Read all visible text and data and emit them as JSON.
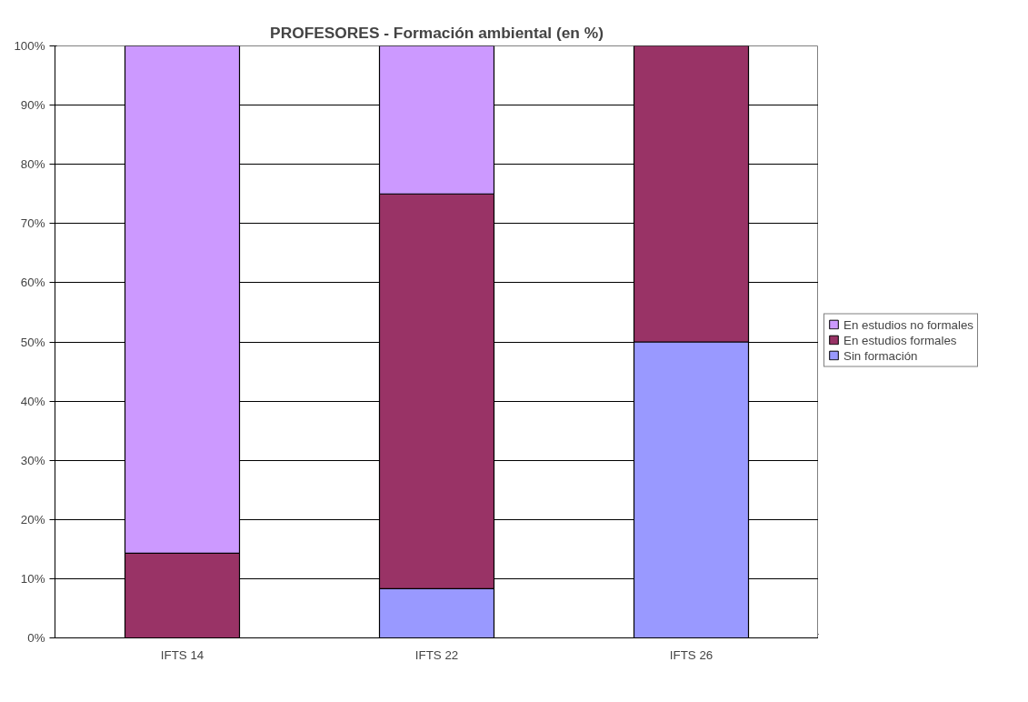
{
  "chart_data": {
    "type": "bar",
    "stacked": true,
    "title": "PROFESORES - Formación ambiental (en %)",
    "categories": [
      "IFTS 14",
      "IFTS 22",
      "IFTS 26"
    ],
    "series": [
      {
        "name": "Sin formación",
        "color": "#9999ff",
        "values": [
          0,
          8.3,
          50
        ]
      },
      {
        "name": "En estudios formales",
        "color": "#993366",
        "values": [
          14.3,
          66.7,
          50
        ]
      },
      {
        "name": "En estudios no formales",
        "color": "#cc99ff",
        "values": [
          85.7,
          25,
          0
        ]
      }
    ],
    "ylim": [
      0,
      100
    ],
    "yticks": [
      {
        "value": 0,
        "label": "0%"
      },
      {
        "value": 10,
        "label": "10%"
      },
      {
        "value": 20,
        "label": "20%"
      },
      {
        "value": 30,
        "label": "30%"
      },
      {
        "value": 40,
        "label": "40%"
      },
      {
        "value": 50,
        "label": "50%"
      },
      {
        "value": 60,
        "label": "60%"
      },
      {
        "value": 70,
        "label": "70%"
      },
      {
        "value": 80,
        "label": "80%"
      },
      {
        "value": 90,
        "label": "90%"
      },
      {
        "value": 100,
        "label": "100%"
      }
    ],
    "grid": "y",
    "legend": "right"
  }
}
